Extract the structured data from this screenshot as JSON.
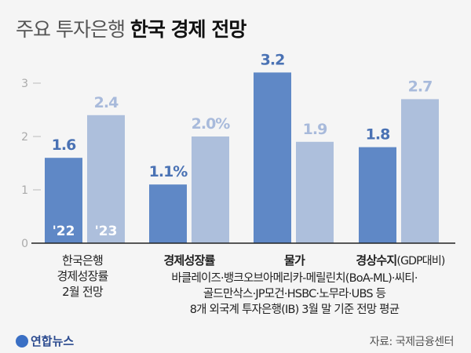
{
  "title": {
    "light": "주요 투자은행",
    "bold": "한국 경제 전망"
  },
  "chart_data": {
    "type": "bar",
    "title": "주요 투자은행 한국 경제 전망",
    "ylim": [
      0,
      3.3
    ],
    "yticks": [
      0,
      1,
      2,
      3
    ],
    "year_labels": [
      "'22",
      "'23"
    ],
    "colors": {
      "y2022": "#5f88c6",
      "y2023": "#adbfdc",
      "label2022": "#4a72b4",
      "label2023": "#a8badb"
    },
    "groups": [
      {
        "name": "한국은행 경제성장률 2월 전망",
        "values": [
          1.6,
          2.4
        ],
        "labels": [
          "1.6",
          "2.4"
        ]
      },
      {
        "name": "경제성장률",
        "values": [
          1.1,
          2.0
        ],
        "labels": [
          "1.1%",
          "2.0%"
        ]
      },
      {
        "name": "물가",
        "values": [
          3.2,
          1.9
        ],
        "labels": [
          "3.2",
          "1.9"
        ]
      },
      {
        "name": "경상수지(GDP대비)",
        "values": [
          1.8,
          2.7
        ],
        "labels": [
          "1.8",
          "2.7"
        ]
      }
    ]
  },
  "categories": {
    "bok": [
      "한국은행",
      "경제성장률",
      "2월 전망"
    ],
    "growth": "경제성장률",
    "prices": "물가",
    "current_account": "경상수지",
    "current_account_note": "(GDP대비)",
    "ib_note": [
      "바클레이즈·뱅크오브아메리카-메릴린치(BoA-ML)·씨티·",
      "골드만삭스·JP모건·HSBC·노무라·UBS 등",
      "8개 외국계 투자은행(IB) 3월 말 기준 전망 평균"
    ]
  },
  "footer": {
    "logo": "연합뉴스",
    "source": "자료: 국제금융센터"
  }
}
